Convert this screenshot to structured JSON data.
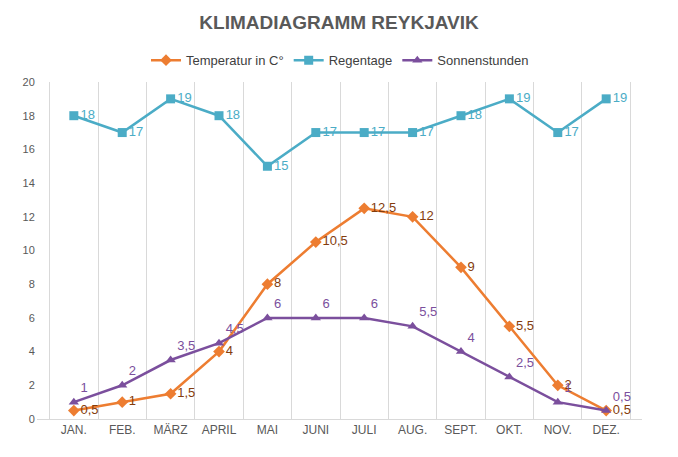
{
  "chart_data": {
    "type": "line",
    "title": "KLIMADIAGRAMM REYKJAVIK",
    "categories": [
      "JAN.",
      "FEB.",
      "MÄRZ",
      "APRIL",
      "MAI",
      "JUNI",
      "JULI",
      "AUG.",
      "SEPT.",
      "OKT.",
      "NOV.",
      "DEZ."
    ],
    "series": [
      {
        "name": "Temperatur in C°",
        "color": "#ed7d31",
        "marker": "diamond",
        "values": [
          0.5,
          1,
          1.5,
          4,
          8,
          10.5,
          12.5,
          12,
          9,
          5.5,
          2,
          0.5
        ],
        "value_labels": [
          "0,5",
          "1",
          "1,5",
          "4",
          "8",
          "10,5",
          "12,5",
          "12",
          "9",
          "5,5",
          "2",
          "0,5"
        ]
      },
      {
        "name": "Regentage",
        "color": "#4bacc6",
        "marker": "square",
        "values": [
          18,
          17,
          19,
          18,
          15,
          17,
          17,
          17,
          18,
          19,
          17,
          19
        ]
      },
      {
        "name": "Sonnenstunden",
        "color": "#7b4f9d",
        "marker": "triangle-up",
        "values": [
          1,
          2,
          3.5,
          4.5,
          6,
          6,
          6,
          5.5,
          4,
          2.5,
          1,
          0.5
        ],
        "value_labels": [
          "1",
          "2",
          "3,5",
          "4,5",
          "6",
          "6",
          "6",
          "5,5",
          "4",
          "2,5",
          "1",
          "0,5"
        ]
      }
    ],
    "ylim": [
      0,
      20
    ],
    "yticks": [
      0,
      2,
      4,
      6,
      8,
      10,
      12,
      14,
      16,
      18,
      20
    ],
    "grid": true,
    "legend": "top",
    "data_labels": true
  }
}
